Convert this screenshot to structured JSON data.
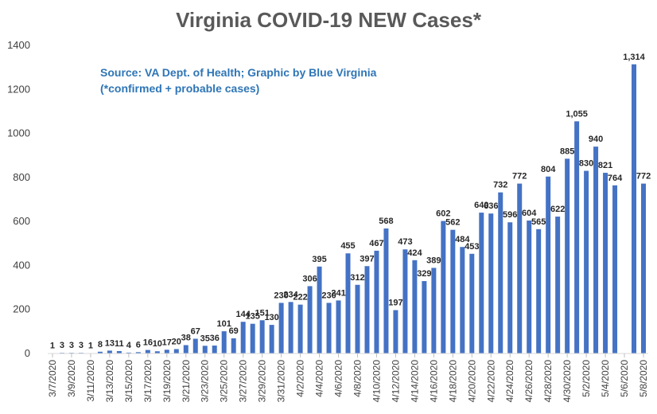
{
  "chart_data": {
    "type": "bar",
    "title": "Virginia COVID-19 NEW Cases*",
    "annotation": [
      "Source: VA Dept. of Health; Graphic by Blue Virginia",
      "(*confirmed + probable cases)"
    ],
    "xlabel": "",
    "ylabel": "",
    "ylim": [
      0,
      1400
    ],
    "yticks": [
      "0",
      "200",
      "400",
      "600",
      "800",
      "1000",
      "1200",
      "1400"
    ],
    "grid": false,
    "bar_color": "#4472C4",
    "categories": [
      "3/7/2020",
      "3/8/2020",
      "3/9/2020",
      "3/10/2020",
      "3/11/2020",
      "3/12/2020",
      "3/13/2020",
      "3/14/2020",
      "3/15/2020",
      "3/16/2020",
      "3/17/2020",
      "3/18/2020",
      "3/19/2020",
      "3/20/2020",
      "3/21/2020",
      "3/22/2020",
      "3/23/2020",
      "3/24/2020",
      "3/25/2020",
      "3/26/2020",
      "3/27/2020",
      "3/28/2020",
      "3/29/2020",
      "3/30/2020",
      "3/31/2020",
      "4/1/2020",
      "4/2/2020",
      "4/3/2020",
      "4/4/2020",
      "4/5/2020",
      "4/6/2020",
      "4/7/2020",
      "4/8/2020",
      "4/9/2020",
      "4/10/2020",
      "4/11/2020",
      "4/12/2020",
      "4/13/2020",
      "4/14/2020",
      "4/15/2020",
      "4/16/2020",
      "4/17/2020",
      "4/18/2020",
      "4/19/2020",
      "4/20/2020",
      "4/21/2020",
      "4/22/2020",
      "4/23/2020",
      "4/24/2020",
      "4/25/2020",
      "4/26/2020",
      "4/27/2020",
      "4/28/2020",
      "4/29/2020",
      "4/30/2020",
      "5/1/2020",
      "5/2/2020",
      "5/3/2020",
      "5/4/2020",
      "5/5/2020",
      "5/6/2020",
      "5/7/2020",
      "5/8/2020"
    ],
    "tick_labels": [
      "3/7/2020",
      "3/9/2020",
      "3/11/2020",
      "3/13/2020",
      "3/15/2020",
      "3/17/2020",
      "3/19/2020",
      "3/21/2020",
      "3/23/2020",
      "3/25/2020",
      "3/27/2020",
      "3/29/2020",
      "3/31/2020",
      "4/2/2020",
      "4/4/2020",
      "4/6/2020",
      "4/8/2020",
      "4/10/2020",
      "4/12/2020",
      "4/14/2020",
      "4/16/2020",
      "4/18/2020",
      "4/20/2020",
      "4/22/2020",
      "4/24/2020",
      "4/26/2020",
      "4/28/2020",
      "4/30/2020",
      "5/2/2020",
      "5/4/2020",
      "5/6/2020",
      "5/8/2020"
    ],
    "values": [
      1,
      3,
      3,
      3,
      1,
      8,
      13,
      11,
      4,
      6,
      16,
      10,
      17,
      20,
      38,
      67,
      35,
      36,
      101,
      69,
      144,
      135,
      151,
      130,
      230,
      234,
      222,
      306,
      395,
      230,
      241,
      455,
      312,
      397,
      467,
      568,
      197,
      473,
      424,
      329,
      389,
      602,
      562,
      484,
      453,
      640,
      636,
      732,
      596,
      772,
      604,
      565,
      804,
      622,
      885,
      1055,
      830,
      940,
      821,
      764,
      null,
      1314,
      772
    ],
    "data_labels": [
      "1",
      "3",
      "3",
      "3",
      "1",
      "8",
      "13",
      "11",
      "4",
      "6",
      "16",
      "10",
      "17",
      "20",
      "38",
      "67",
      "35",
      "36",
      "101",
      "69",
      "144",
      "135",
      "151",
      "130",
      "230",
      "234",
      "222",
      "306",
      "395",
      "230",
      "241",
      "455",
      "312",
      "397",
      "467",
      "568",
      "197",
      "473",
      "424",
      "329",
      "389",
      "602",
      "562",
      "484",
      "453",
      "640",
      "636",
      "732",
      "596",
      "772",
      "604",
      "565",
      "804",
      "622",
      "885",
      "1,055",
      "830",
      "940",
      "821",
      "764",
      "",
      "1,314",
      "772"
    ]
  }
}
